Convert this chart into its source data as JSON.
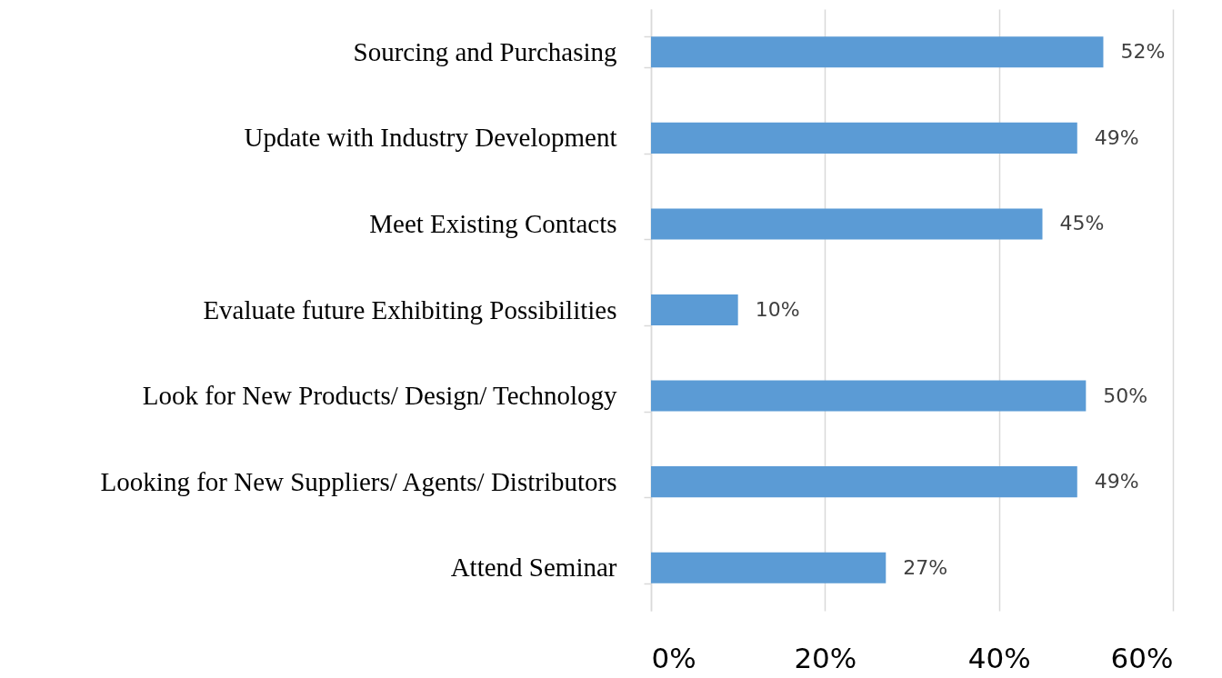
{
  "chart_data": {
    "type": "bar",
    "orientation": "horizontal",
    "categories": [
      "Sourcing and Purchasing",
      "Update with Industry Development",
      "Meet Existing Contacts",
      "Evaluate future Exhibiting Possibilities",
      "Look for New Products/ Design/ Technology",
      "Looking for New Suppliers/ Agents/ Distributors",
      "Attend Seminar"
    ],
    "values": [
      52,
      49,
      45,
      10,
      50,
      49,
      27
    ],
    "value_labels": [
      "52%",
      "49%",
      "45%",
      "10%",
      "50%",
      "49%",
      "27%"
    ],
    "color": "#5b9bd5",
    "xlim": [
      0,
      60
    ],
    "xticks": [
      {
        "value": 0,
        "label": "0%"
      },
      {
        "value": 20,
        "label": "20%"
      },
      {
        "value": 40,
        "label": "40%"
      },
      {
        "value": 60,
        "label": "60%"
      }
    ],
    "grid": "x"
  }
}
